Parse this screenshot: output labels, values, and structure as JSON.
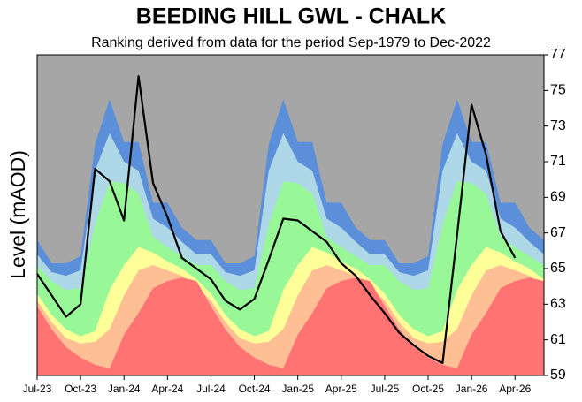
{
  "chart_data": {
    "type": "band-area",
    "title": "BEEDING HILL GWL - CHALK",
    "subtitle": "Ranking derived from data for the period Sep-1979 to Dec-2022",
    "y_label": "Level (mAOD)",
    "plot_background": "#a6a6a6",
    "categories": [
      "Jul-23",
      null,
      null,
      "Oct-23",
      null,
      null,
      "Jan-24",
      null,
      null,
      "Apr-24",
      null,
      null,
      "Jul-24",
      null,
      null,
      "Oct-24",
      null,
      null,
      "Jan-25",
      null,
      null,
      "Apr-25",
      null,
      null,
      "Jul-25",
      null,
      null,
      "Oct-25",
      null,
      null,
      "Jan-26",
      null,
      null,
      "Apr-26",
      null,
      null
    ],
    "bands": [
      {
        "color": "#5b8fd9",
        "values": [
          66.6,
          65.3,
          65.3,
          65.7,
          72.0,
          74.5,
          72.1,
          72.1,
          68.7,
          68.7,
          67.3,
          66.6,
          66.6,
          65.3,
          65.3,
          65.7,
          72.0,
          74.5,
          72.1,
          72.1,
          68.7,
          68.7,
          67.3,
          66.6,
          66.6,
          65.3,
          65.3,
          65.7,
          72.0,
          74.5,
          72.1,
          72.1,
          68.7,
          68.7,
          67.3,
          66.6
        ]
      },
      {
        "color": "#aed8e8",
        "values": [
          65.8,
          64.8,
          64.6,
          64.9,
          70.5,
          72.6,
          71.0,
          70.5,
          67.8,
          67.3,
          66.5,
          65.8,
          65.8,
          64.8,
          64.6,
          64.9,
          70.5,
          72.6,
          71.0,
          70.5,
          67.8,
          67.3,
          66.5,
          65.8,
          65.8,
          64.8,
          64.6,
          64.9,
          70.5,
          72.6,
          71.0,
          70.5,
          67.8,
          67.3,
          66.5,
          65.8
        ]
      },
      {
        "color": "#98f898",
        "values": [
          65.2,
          64.3,
          63.8,
          63.9,
          67.5,
          69.9,
          69.8,
          69.2,
          66.8,
          66.2,
          65.7,
          65.2,
          65.2,
          64.3,
          63.8,
          63.9,
          67.5,
          69.9,
          69.8,
          69.2,
          66.8,
          66.2,
          65.7,
          65.2,
          65.2,
          64.3,
          63.8,
          63.9,
          67.5,
          69.9,
          69.8,
          69.2,
          66.8,
          66.2,
          65.7,
          65.2
        ]
      },
      {
        "color": "#ffff99",
        "values": [
          63.6,
          62.4,
          61.6,
          61.2,
          61.5,
          63.8,
          65.2,
          66.2,
          65.9,
          65.4,
          65.0,
          64.4,
          63.6,
          62.4,
          61.6,
          61.2,
          61.5,
          63.8,
          65.2,
          66.2,
          65.9,
          65.4,
          65.0,
          64.4,
          63.6,
          62.4,
          61.6,
          61.2,
          61.5,
          63.8,
          65.2,
          66.2,
          65.9,
          65.4,
          65.0,
          64.4
        ]
      },
      {
        "color": "#ffbf94",
        "values": [
          63.2,
          62.0,
          61.1,
          60.8,
          60.9,
          61.6,
          63.5,
          64.9,
          65.2,
          64.9,
          64.6,
          64.0,
          63.2,
          62.0,
          61.1,
          60.8,
          60.9,
          61.6,
          63.5,
          64.9,
          65.2,
          64.9,
          64.6,
          64.0,
          63.2,
          62.0,
          61.1,
          60.8,
          60.9,
          61.6,
          63.5,
          64.9,
          65.2,
          64.9,
          64.6,
          64.0
        ]
      },
      {
        "color": "#ff7373",
        "values": [
          62.9,
          61.6,
          60.6,
          60.0,
          59.6,
          59.4,
          61.3,
          62.5,
          63.9,
          64.3,
          64.5,
          64.3,
          62.9,
          61.6,
          60.6,
          60.0,
          59.6,
          59.4,
          61.3,
          62.5,
          63.9,
          64.3,
          64.5,
          64.3,
          62.9,
          61.6,
          60.6,
          60.0,
          59.6,
          59.4,
          61.3,
          62.5,
          63.9,
          64.3,
          64.5,
          64.3
        ]
      }
    ],
    "series": [
      {
        "color": "#000000",
        "values": [
          64.7,
          63.5,
          62.3,
          63.0,
          70.6,
          69.9,
          67.7,
          75.8,
          69.8,
          67.9,
          65.6,
          65.0,
          64.4,
          63.2,
          62.7,
          63.3,
          65.5,
          67.8,
          67.7,
          67.1,
          66.5,
          65.3,
          64.6,
          63.5,
          62.5,
          61.4,
          60.7,
          60.1,
          59.7,
          66.9,
          74.2,
          71.4,
          67.1,
          65.6,
          null,
          null
        ]
      }
    ],
    "ylim": [
      59,
      77
    ],
    "yticks": [
      59,
      61,
      63,
      65,
      67,
      69,
      71,
      73,
      75,
      77
    ]
  }
}
